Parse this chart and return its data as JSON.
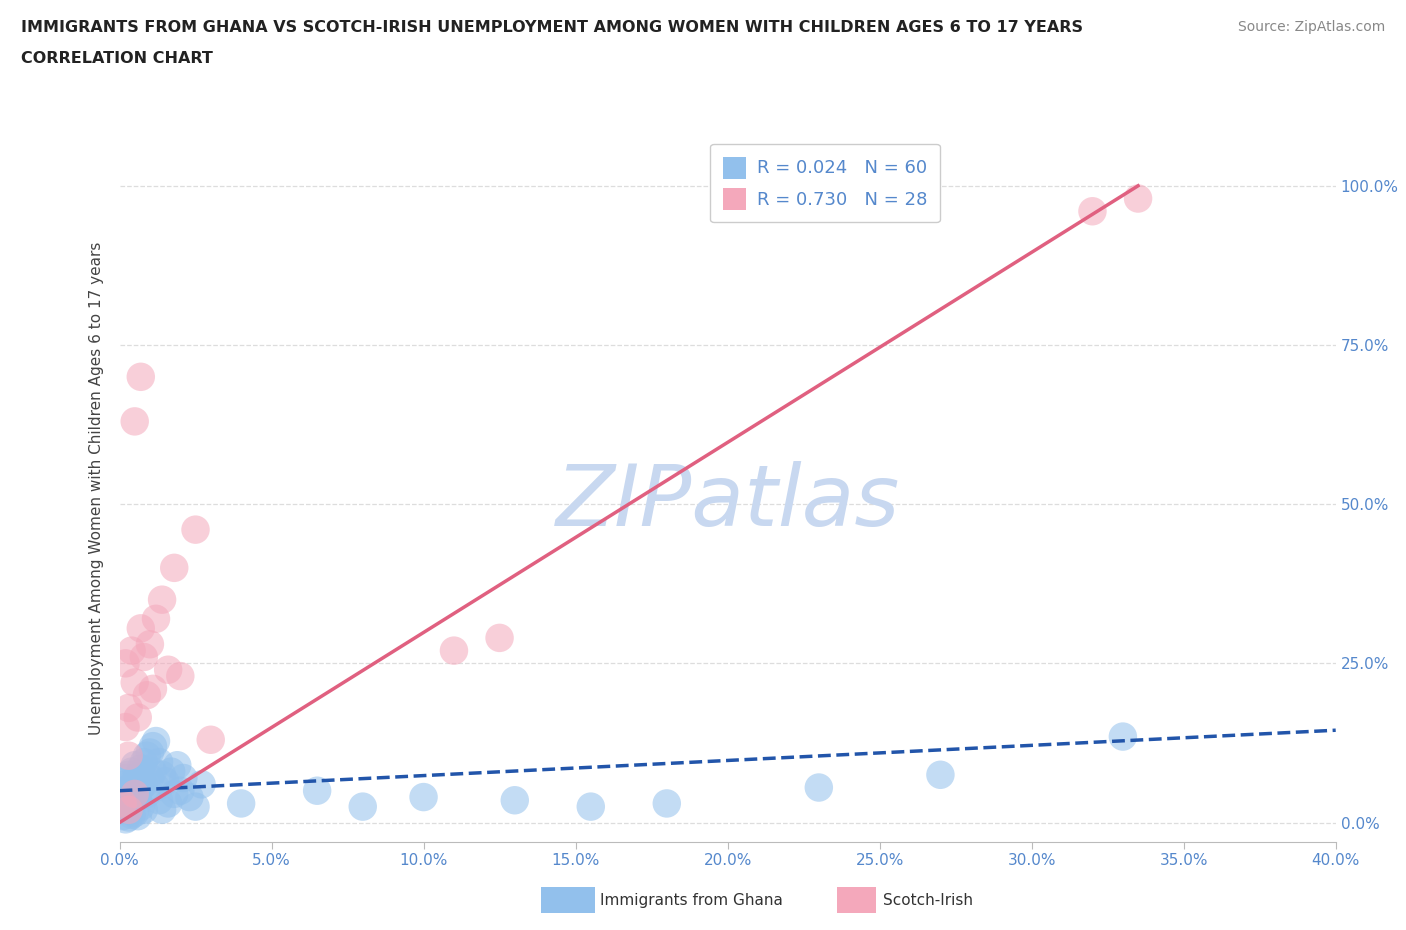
{
  "title": "IMMIGRANTS FROM GHANA VS SCOTCH-IRISH UNEMPLOYMENT AMONG WOMEN WITH CHILDREN AGES 6 TO 17 YEARS",
  "subtitle": "CORRELATION CHART",
  "source": "Source: ZipAtlas.com",
  "xlim": [
    0,
    0.4
  ],
  "ylim": [
    -0.03,
    1.08
  ],
  "ghana_R": 0.024,
  "ghana_N": 60,
  "scotch_R": 0.73,
  "scotch_N": 28,
  "ghana_color": "#92C0EC",
  "scotch_color": "#F4A8BB",
  "ghana_line_color": "#2255AA",
  "scotch_line_color": "#E06080",
  "watermark_color": "#C8D8F0",
  "tick_color": "#5588CC",
  "title_color": "#222222",
  "label_color": "#444444",
  "grid_color": "#DDDDDD",
  "ghana_x": [
    0.001,
    0.001,
    0.001,
    0.002,
    0.002,
    0.002,
    0.002,
    0.003,
    0.003,
    0.003,
    0.003,
    0.004,
    0.004,
    0.004,
    0.004,
    0.005,
    0.005,
    0.005,
    0.005,
    0.006,
    0.006,
    0.006,
    0.007,
    0.007,
    0.007,
    0.008,
    0.008,
    0.008,
    0.009,
    0.009,
    0.01,
    0.01,
    0.011,
    0.011,
    0.012,
    0.012,
    0.013,
    0.013,
    0.014,
    0.014,
    0.015,
    0.016,
    0.017,
    0.018,
    0.019,
    0.02,
    0.021,
    0.023,
    0.025,
    0.027,
    0.04,
    0.065,
    0.08,
    0.1,
    0.13,
    0.155,
    0.18,
    0.23,
    0.27,
    0.33
  ],
  "ghana_y": [
    0.05,
    0.03,
    0.01,
    0.06,
    0.07,
    0.02,
    0.005,
    0.075,
    0.04,
    0.025,
    0.008,
    0.055,
    0.03,
    0.08,
    0.012,
    0.065,
    0.035,
    0.09,
    0.015,
    0.072,
    0.04,
    0.01,
    0.085,
    0.055,
    0.025,
    0.095,
    0.06,
    0.02,
    0.105,
    0.045,
    0.11,
    0.07,
    0.12,
    0.08,
    0.128,
    0.055,
    0.095,
    0.035,
    0.075,
    0.02,
    0.065,
    0.03,
    0.08,
    0.045,
    0.09,
    0.05,
    0.07,
    0.04,
    0.025,
    0.06,
    0.03,
    0.05,
    0.025,
    0.04,
    0.035,
    0.025,
    0.03,
    0.055,
    0.075,
    0.135
  ],
  "scotch_x": [
    0.001,
    0.002,
    0.002,
    0.003,
    0.003,
    0.004,
    0.005,
    0.005,
    0.006,
    0.007,
    0.008,
    0.009,
    0.01,
    0.011,
    0.012,
    0.014,
    0.016,
    0.018,
    0.02,
    0.025,
    0.005,
    0.007,
    0.11,
    0.125,
    0.32,
    0.335,
    0.003,
    0.03
  ],
  "scotch_y": [
    0.03,
    0.15,
    0.25,
    0.18,
    0.105,
    0.27,
    0.045,
    0.22,
    0.165,
    0.305,
    0.26,
    0.2,
    0.28,
    0.21,
    0.32,
    0.35,
    0.24,
    0.4,
    0.23,
    0.46,
    0.63,
    0.7,
    0.27,
    0.29,
    0.96,
    0.98,
    0.02,
    0.13
  ],
  "scotch_line_x0": 0.0,
  "scotch_line_y0": 0.0,
  "scotch_line_x1": 0.335,
  "scotch_line_y1": 1.0,
  "ghana_line_x0": 0.0,
  "ghana_line_y0": 0.05,
  "ghana_line_x1": 0.4,
  "ghana_line_y1": 0.145
}
